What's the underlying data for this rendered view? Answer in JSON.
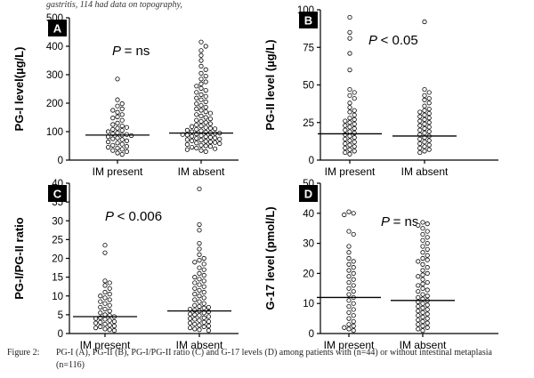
{
  "header_text": "gastritis, 114 had data on topography,",
  "caption": {
    "label": "Figure 2:",
    "line1": "PG-I (A), PG-II (B), PG-I/PG-II ratio (C) and G-17 levels (D) among patients with (n=44) or without intestinal metaplasia",
    "line2": "(n=116)"
  },
  "chart_data": [
    {
      "panel": "A",
      "type": "scatter",
      "ylabel": "PG-I level(µg/L)",
      "ylim": [
        0,
        500
      ],
      "yticks": [
        0,
        100,
        200,
        300,
        400,
        500
      ],
      "categories": [
        "IM present",
        "IM absent"
      ],
      "stat": "= ns",
      "medians": [
        88,
        95
      ],
      "series": [
        {
          "category": "IM present",
          "values": [
            285,
            212,
            198,
            190,
            180,
            175,
            168,
            160,
            152,
            148,
            140,
            130,
            125,
            120,
            115,
            112,
            108,
            104,
            100,
            96,
            92,
            90,
            88,
            86,
            82,
            78,
            75,
            72,
            68,
            64,
            60,
            56,
            52,
            48,
            45,
            42,
            38,
            34,
            30,
            25,
            20
          ]
        },
        {
          "category": "IM absent",
          "values": [
            415,
            400,
            385,
            368,
            350,
            330,
            318,
            305,
            295,
            285,
            275,
            268,
            260,
            252,
            245,
            238,
            230,
            224,
            218,
            212,
            205,
            198,
            192,
            186,
            180,
            175,
            170,
            165,
            160,
            155,
            150,
            145,
            140,
            136,
            132,
            128,
            124,
            120,
            118,
            115,
            112,
            110,
            108,
            105,
            103,
            100,
            98,
            96,
            95,
            94,
            92,
            90,
            88,
            86,
            84,
            82,
            80,
            78,
            76,
            74,
            72,
            70,
            68,
            66,
            64,
            62,
            60,
            58,
            55,
            52,
            50,
            48,
            45,
            42,
            40,
            37,
            34,
            30
          ]
        }
      ]
    },
    {
      "panel": "B",
      "type": "scatter",
      "ylabel": "PG-II level (µg/L)",
      "ylim": [
        0,
        100
      ],
      "yticks": [
        0,
        25,
        50,
        75,
        100
      ],
      "categories": [
        "IM present",
        "IM absent"
      ],
      "stat": "< 0.05",
      "medians": [
        17.5,
        16
      ],
      "series": [
        {
          "category": "IM present",
          "values": [
            95,
            85,
            81,
            71,
            60,
            47,
            45,
            43,
            41,
            38,
            35,
            33,
            32,
            30,
            28,
            27,
            26,
            25,
            24,
            23,
            22,
            21,
            20,
            19,
            18,
            17,
            16,
            15,
            14,
            13,
            12,
            11,
            10,
            9,
            8,
            7,
            6,
            5,
            4
          ]
        },
        {
          "category": "IM absent",
          "values": [
            92,
            47,
            45,
            43,
            41,
            40,
            38,
            36,
            34,
            33,
            32,
            31,
            30,
            29,
            28,
            27,
            26,
            25,
            24,
            23,
            22,
            21,
            20,
            19,
            18,
            17,
            16,
            15,
            14,
            13,
            12,
            11,
            10,
            9,
            8,
            7,
            6,
            5
          ]
        }
      ]
    },
    {
      "panel": "C",
      "type": "scatter",
      "ylabel": "PG-I/PG-II ratio",
      "ylim": [
        0,
        40
      ],
      "yticks": [
        0,
        5,
        10,
        15,
        20,
        25,
        30,
        35,
        40
      ],
      "categories": [
        "IM present",
        "IM absent"
      ],
      "stat": "< 0.006",
      "medians": [
        4.5,
        6
      ],
      "series": [
        {
          "category": "IM present",
          "values": [
            23.5,
            21.5,
            14,
            13.5,
            12.8,
            12,
            11,
            10.5,
            10,
            9.5,
            9,
            8.5,
            8,
            7.5,
            7,
            6.5,
            6,
            5.5,
            5,
            4.8,
            4.5,
            4.2,
            4,
            3.8,
            3.5,
            3.2,
            3,
            2.8,
            2.5,
            2.2,
            2,
            1.8,
            1.5,
            1.2,
            1,
            0.8
          ]
        },
        {
          "category": "IM absent",
          "values": [
            38.5,
            29,
            27.5,
            24,
            22.5,
            21,
            20,
            19.5,
            19,
            18.5,
            17.5,
            17,
            16,
            15.5,
            15,
            14.5,
            14,
            13.5,
            13,
            12.5,
            12,
            11.5,
            11,
            10.5,
            10,
            9.5,
            9,
            8.5,
            8,
            7.5,
            7.2,
            7,
            6.8,
            6.5,
            6.2,
            6,
            5.8,
            5.5,
            5.2,
            5,
            4.8,
            4.5,
            4.2,
            4,
            3.8,
            3.5,
            3.2,
            3,
            2.8,
            2.5,
            2.2,
            2,
            1.8,
            1.5,
            1.2,
            1,
            0.8
          ]
        }
      ]
    },
    {
      "panel": "D",
      "type": "scatter",
      "ylabel": "G-17 level (pmol/L)",
      "ylim": [
        0,
        50
      ],
      "yticks": [
        0,
        10,
        20,
        30,
        40,
        50
      ],
      "categories": [
        "IM present",
        "IM absent"
      ],
      "stat": "= ns",
      "medians": [
        12,
        11
      ],
      "series": [
        {
          "category": "IM present",
          "values": [
            40.5,
            40,
            39.5,
            34,
            33,
            29,
            27,
            25,
            24,
            23,
            22,
            21,
            20,
            19,
            18,
            17,
            16,
            15,
            14,
            13,
            12,
            11,
            10,
            9,
            8,
            7,
            6,
            5,
            4,
            3,
            2.5,
            2,
            1.5,
            1
          ]
        },
        {
          "category": "IM absent",
          "values": [
            37,
            36.5,
            36,
            35,
            34,
            33,
            32,
            31,
            30,
            29,
            28,
            27,
            26,
            25,
            24.5,
            24,
            23,
            22,
            21,
            20,
            19.5,
            19,
            18,
            17,
            16.5,
            16,
            15,
            14.5,
            14,
            13,
            12.5,
            12,
            11.5,
            11,
            10.5,
            10,
            9.5,
            9,
            8.5,
            8,
            7.5,
            7,
            6.5,
            6,
            5.5,
            5,
            4.5,
            4,
            3.5,
            3,
            2.5,
            2,
            1.5,
            1
          ]
        }
      ]
    }
  ]
}
